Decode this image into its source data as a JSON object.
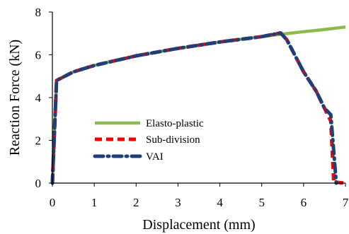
{
  "chart_data": {
    "type": "line",
    "title": "",
    "xlabel": "Displacement (mm)",
    "ylabel": "Reaction Force (kN)",
    "xlim": [
      0,
      7
    ],
    "ylim": [
      0,
      8
    ],
    "xticks": [
      0,
      1,
      2,
      3,
      4,
      5,
      6,
      7
    ],
    "yticks": [
      0,
      2,
      4,
      6,
      8
    ],
    "grid": false,
    "legend_position": "bottom-left",
    "series": [
      {
        "name": "Elasto-plastic",
        "color": "#8DB94E",
        "style": "solid",
        "points": [
          [
            0,
            0
          ],
          [
            0.1,
            4.8
          ],
          [
            0.5,
            5.2
          ],
          [
            1,
            5.5
          ],
          [
            2,
            5.95
          ],
          [
            3,
            6.3
          ],
          [
            4,
            6.6
          ],
          [
            5,
            6.85
          ],
          [
            5.5,
            6.97
          ],
          [
            6,
            7.08
          ],
          [
            6.5,
            7.18
          ],
          [
            7,
            7.3
          ]
        ]
      },
      {
        "name": "Sub-division",
        "color": "#FF0000",
        "style": "dashed",
        "points": [
          [
            0,
            0
          ],
          [
            0.1,
            4.8
          ],
          [
            0.5,
            5.2
          ],
          [
            1,
            5.5
          ],
          [
            2,
            5.95
          ],
          [
            3,
            6.3
          ],
          [
            4,
            6.6
          ],
          [
            5,
            6.85
          ],
          [
            5.45,
            7.02
          ],
          [
            5.6,
            6.7
          ],
          [
            6.0,
            5.2
          ],
          [
            6.3,
            4.3
          ],
          [
            6.5,
            3.5
          ],
          [
            6.65,
            2.9
          ],
          [
            6.72,
            0.05
          ],
          [
            7,
            0
          ]
        ]
      },
      {
        "name": "VAI",
        "color": "#1F3F77",
        "style": "dashdot",
        "points": [
          [
            0,
            0
          ],
          [
            0.1,
            4.8
          ],
          [
            0.5,
            5.2
          ],
          [
            1,
            5.5
          ],
          [
            2,
            5.95
          ],
          [
            3,
            6.3
          ],
          [
            4,
            6.6
          ],
          [
            5,
            6.85
          ],
          [
            5.45,
            7.02
          ],
          [
            5.6,
            6.7
          ],
          [
            6.0,
            5.2
          ],
          [
            6.3,
            4.3
          ],
          [
            6.5,
            3.5
          ],
          [
            6.65,
            3.2
          ],
          [
            6.78,
            0
          ]
        ]
      }
    ]
  }
}
